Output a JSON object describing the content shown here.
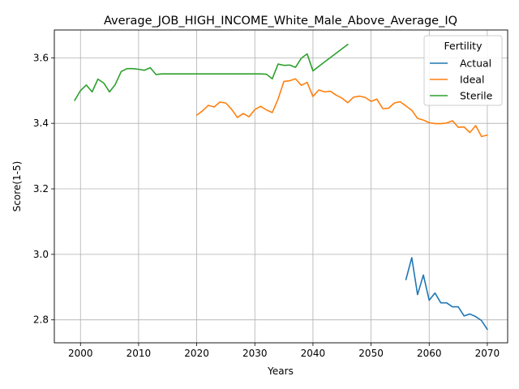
{
  "chart_data": {
    "type": "line",
    "title": "Average_JOB_HIGH_INCOME_White_Male_Above_Average_IQ",
    "xlabel": "Years",
    "ylabel": "Score(1-5)",
    "xlim": [
      1995.5,
      2073.5
    ],
    "ylim": [
      2.73,
      3.685
    ],
    "xticks": [
      2000,
      2010,
      2020,
      2030,
      2040,
      2050,
      2060,
      2070
    ],
    "yticks": [
      2.8,
      3.0,
      3.2,
      3.4,
      3.6
    ],
    "xtick_labels": [
      "2000",
      "2010",
      "2020",
      "2030",
      "2040",
      "2050",
      "2060",
      "2070"
    ],
    "ytick_labels": [
      "2.8",
      "3.0",
      "3.2",
      "3.4",
      "3.6"
    ],
    "grid": true,
    "legend": {
      "title": "Fertility",
      "placement": "top-right"
    },
    "series": [
      {
        "name": "Actual",
        "color": "#1f77b4",
        "points": [
          [
            2056,
            2.923
          ],
          [
            2057,
            2.99
          ],
          [
            2058,
            2.877
          ],
          [
            2059,
            2.937
          ],
          [
            2060,
            2.86
          ],
          [
            2061,
            2.882
          ],
          [
            2062,
            2.852
          ],
          [
            2063,
            2.852
          ],
          [
            2064,
            2.84
          ],
          [
            2065,
            2.84
          ],
          [
            2066,
            2.812
          ],
          [
            2067,
            2.818
          ],
          [
            2068,
            2.81
          ],
          [
            2069,
            2.798
          ],
          [
            2070,
            2.771
          ]
        ]
      },
      {
        "name": "Ideal",
        "color": "#ff7f0e",
        "points": [
          [
            2020,
            3.425
          ],
          [
            2021,
            3.438
          ],
          [
            2022,
            3.455
          ],
          [
            2023,
            3.45
          ],
          [
            2024,
            3.465
          ],
          [
            2025,
            3.462
          ],
          [
            2026,
            3.443
          ],
          [
            2027,
            3.418
          ],
          [
            2028,
            3.43
          ],
          [
            2029,
            3.42
          ],
          [
            2030,
            3.442
          ],
          [
            2031,
            3.452
          ],
          [
            2032,
            3.441
          ],
          [
            2033,
            3.433
          ],
          [
            2034,
            3.474
          ],
          [
            2035,
            3.528
          ],
          [
            2036,
            3.53
          ],
          [
            2037,
            3.536
          ],
          [
            2038,
            3.516
          ],
          [
            2039,
            3.525
          ],
          [
            2040,
            3.482
          ],
          [
            2041,
            3.502
          ],
          [
            2042,
            3.496
          ],
          [
            2043,
            3.498
          ],
          [
            2044,
            3.486
          ],
          [
            2045,
            3.477
          ],
          [
            2046,
            3.463
          ],
          [
            2047,
            3.48
          ],
          [
            2048,
            3.483
          ],
          [
            2049,
            3.479
          ],
          [
            2050,
            3.467
          ],
          [
            2051,
            3.474
          ],
          [
            2052,
            3.445
          ],
          [
            2053,
            3.446
          ],
          [
            2054,
            3.462
          ],
          [
            2055,
            3.466
          ],
          [
            2056,
            3.453
          ],
          [
            2057,
            3.44
          ],
          [
            2058,
            3.415
          ],
          [
            2059,
            3.41
          ],
          [
            2060,
            3.402
          ],
          [
            2061,
            3.399
          ],
          [
            2062,
            3.399
          ],
          [
            2063,
            3.401
          ],
          [
            2064,
            3.408
          ],
          [
            2065,
            3.388
          ],
          [
            2066,
            3.389
          ],
          [
            2067,
            3.372
          ],
          [
            2068,
            3.393
          ],
          [
            2069,
            3.36
          ],
          [
            2070,
            3.364
          ]
        ]
      },
      {
        "name": "Sterile",
        "color": "#2ca02c",
        "points": [
          [
            1999,
            3.47
          ],
          [
            2000,
            3.5
          ],
          [
            2001,
            3.517
          ],
          [
            2002,
            3.496
          ],
          [
            2003,
            3.535
          ],
          [
            2004,
            3.523
          ],
          [
            2005,
            3.496
          ],
          [
            2006,
            3.519
          ],
          [
            2007,
            3.558
          ],
          [
            2008,
            3.567
          ],
          [
            2009,
            3.567
          ],
          [
            2010,
            3.565
          ],
          [
            2011,
            3.562
          ],
          [
            2012,
            3.57
          ],
          [
            2013,
            3.549
          ],
          [
            2014,
            3.551
          ],
          [
            2015,
            3.551
          ],
          [
            2020,
            3.551
          ],
          [
            2025,
            3.551
          ],
          [
            2030,
            3.551
          ],
          [
            2031,
            3.551
          ],
          [
            2032,
            3.55
          ],
          [
            2033,
            3.536
          ],
          [
            2034,
            3.581
          ],
          [
            2035,
            3.577
          ],
          [
            2036,
            3.578
          ],
          [
            2037,
            3.571
          ],
          [
            2038,
            3.599
          ],
          [
            2039,
            3.612
          ],
          [
            2040,
            3.56
          ],
          [
            2041,
            3.574
          ],
          [
            2046,
            3.641
          ]
        ]
      }
    ]
  }
}
